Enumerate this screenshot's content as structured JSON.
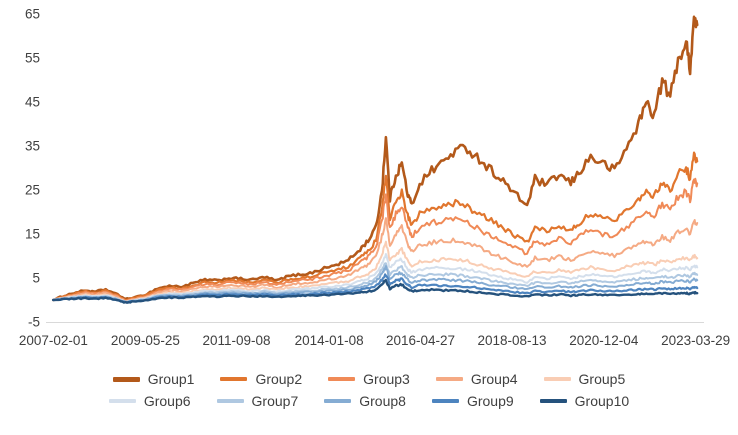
{
  "chart_data": {
    "type": "line",
    "title": "",
    "xlabel": "",
    "ylabel": "",
    "grid": false,
    "axis_color": "#D9D9D9",
    "text_color": "#404040",
    "ylim": [
      -5,
      65
    ],
    "xlim": [
      2007.0,
      2023.35
    ],
    "y_ticks": [
      -5,
      5,
      15,
      25,
      35,
      45,
      55,
      65
    ],
    "x_tick_labels": [
      "2007-02-01",
      "2009-05-25",
      "2011-09-08",
      "2014-01-08",
      "2016-04-27",
      "2018-08-13",
      "2020-12-04",
      "2023-03-29"
    ],
    "x_tick_positions": [
      2007.085,
      2009.4,
      2011.69,
      2014.02,
      2016.32,
      2018.62,
      2020.93,
      2023.24
    ],
    "x": [
      2007.08,
      2007.3,
      2007.6,
      2007.9,
      2008.1,
      2008.4,
      2008.7,
      2008.9,
      2009.1,
      2009.4,
      2009.7,
      2010.0,
      2010.3,
      2010.6,
      2010.9,
      2011.2,
      2011.5,
      2011.8,
      2012.1,
      2012.4,
      2012.7,
      2013.0,
      2013.3,
      2013.6,
      2013.9,
      2014.2,
      2014.5,
      2014.8,
      2015.0,
      2015.2,
      2015.35,
      2015.45,
      2015.55,
      2015.7,
      2015.85,
      2016.0,
      2016.1,
      2016.3,
      2016.6,
      2016.9,
      2017.2,
      2017.5,
      2017.8,
      2018.1,
      2018.4,
      2018.7,
      2019.0,
      2019.2,
      2019.5,
      2019.8,
      2020.1,
      2020.3,
      2020.6,
      2020.9,
      2021.2,
      2021.5,
      2021.8,
      2022.0,
      2022.2,
      2022.4,
      2022.6,
      2022.8,
      2023.0,
      2023.1,
      2023.2,
      2023.28
    ],
    "series": [
      {
        "name": "Group1",
        "color": "#B3591A",
        "width": 2.6,
        "values": [
          0,
          0.8,
          1.6,
          2.2,
          1.8,
          2.4,
          1.2,
          0.2,
          0.5,
          1.2,
          2.6,
          3.2,
          3.0,
          3.8,
          4.6,
          4.4,
          5.0,
          4.8,
          4.6,
          5.2,
          4.4,
          5.4,
          5.8,
          6.2,
          7.2,
          8.0,
          9.0,
          11.5,
          13.5,
          16.5,
          25.0,
          37.0,
          23.0,
          28.5,
          31.0,
          24.0,
          21.5,
          26.5,
          29.5,
          31.5,
          34.0,
          34.5,
          32.0,
          29.5,
          27.0,
          24.0,
          21.5,
          27.5,
          26.0,
          28.5,
          26.5,
          29.0,
          32.5,
          31.0,
          29.5,
          34.5,
          40.0,
          45.0,
          42.0,
          50.0,
          46.0,
          55.0,
          58.0,
          53.0,
          64.0,
          62.5
        ]
      },
      {
        "name": "Group2",
        "color": "#E1762E",
        "width": 2.2,
        "values": [
          0,
          0.7,
          1.4,
          2.0,
          1.6,
          2.1,
          1.0,
          0.0,
          0.4,
          1.0,
          2.2,
          2.8,
          2.6,
          3.3,
          4.0,
          3.9,
          4.4,
          4.2,
          4.0,
          4.6,
          3.9,
          4.7,
          5.0,
          5.4,
          6.2,
          6.8,
          7.6,
          9.5,
          11.0,
          13.5,
          21.0,
          28.0,
          18.5,
          22.5,
          24.5,
          19.0,
          17.0,
          19.5,
          21.0,
          21.5,
          22.0,
          21.0,
          19.5,
          18.0,
          16.5,
          14.5,
          13.0,
          16.5,
          15.5,
          17.0,
          16.0,
          17.5,
          19.5,
          18.5,
          18.0,
          20.5,
          23.0,
          25.0,
          23.5,
          27.0,
          25.0,
          28.5,
          30.0,
          27.5,
          33.0,
          31.5
        ]
      },
      {
        "name": "Group3",
        "color": "#F08A57",
        "width": 2.0,
        "values": [
          0,
          0.6,
          1.2,
          1.8,
          1.4,
          1.9,
          0.8,
          -0.2,
          0.2,
          0.8,
          1.9,
          2.5,
          2.3,
          2.9,
          3.6,
          3.5,
          4.0,
          3.8,
          3.6,
          4.1,
          3.5,
          4.2,
          4.5,
          4.8,
          5.5,
          6.0,
          6.7,
          8.5,
          9.8,
          12.0,
          18.0,
          24.0,
          16.0,
          19.5,
          21.0,
          16.5,
          14.5,
          16.5,
          17.5,
          18.0,
          18.5,
          17.5,
          16.0,
          14.5,
          13.5,
          12.0,
          10.5,
          13.5,
          12.5,
          14.0,
          13.0,
          14.5,
          16.0,
          15.0,
          14.5,
          16.5,
          18.5,
          20.0,
          19.0,
          22.0,
          20.5,
          23.5,
          24.5,
          22.5,
          27.5,
          26.5
        ]
      },
      {
        "name": "Group4",
        "color": "#F5AA84",
        "width": 2.0,
        "values": [
          0,
          0.5,
          1.0,
          1.5,
          1.2,
          1.6,
          0.6,
          -0.3,
          0.1,
          0.6,
          1.6,
          2.1,
          2.0,
          2.5,
          3.1,
          3.0,
          3.4,
          3.2,
          3.0,
          3.5,
          2.9,
          3.5,
          3.8,
          4.0,
          4.6,
          5.0,
          5.6,
          7.0,
          8.0,
          9.8,
          14.5,
          18.5,
          12.5,
          15.0,
          16.5,
          12.5,
          11.0,
          12.5,
          13.0,
          13.5,
          13.5,
          13.0,
          12.0,
          10.5,
          9.5,
          8.5,
          7.5,
          9.5,
          9.0,
          10.0,
          9.0,
          10.0,
          11.0,
          10.5,
          10.0,
          11.5,
          12.5,
          13.5,
          12.5,
          14.5,
          13.5,
          15.5,
          16.0,
          15.0,
          18.0,
          17.5
        ]
      },
      {
        "name": "Group5",
        "color": "#F9CDB4",
        "width": 2.0,
        "values": [
          0,
          0.4,
          0.8,
          1.2,
          0.9,
          1.3,
          0.4,
          -0.4,
          0.0,
          0.4,
          1.3,
          1.7,
          1.6,
          2.0,
          2.5,
          2.4,
          2.8,
          2.6,
          2.4,
          2.8,
          2.3,
          2.8,
          3.0,
          3.2,
          3.6,
          3.9,
          4.3,
          5.3,
          6.0,
          7.3,
          10.5,
          13.0,
          9.0,
          10.5,
          11.5,
          8.8,
          7.8,
          8.8,
          9.0,
          9.2,
          9.2,
          8.8,
          8.0,
          7.2,
          6.5,
          5.8,
          5.2,
          6.5,
          6.2,
          6.8,
          6.2,
          6.8,
          7.4,
          7.0,
          6.8,
          7.5,
          8.0,
          8.5,
          8.0,
          9.0,
          8.5,
          9.3,
          9.5,
          9.0,
          10.0,
          9.5
        ]
      },
      {
        "name": "Group6",
        "color": "#D4DFEC",
        "width": 2.0,
        "values": [
          0,
          0.35,
          0.7,
          1.0,
          0.8,
          1.1,
          0.3,
          -0.4,
          -0.1,
          0.3,
          1.1,
          1.4,
          1.3,
          1.7,
          2.1,
          2.0,
          2.3,
          2.2,
          2.0,
          2.3,
          1.9,
          2.3,
          2.5,
          2.6,
          3.0,
          3.2,
          3.5,
          4.3,
          4.9,
          6.0,
          8.5,
          10.5,
          7.2,
          8.5,
          9.2,
          7.0,
          6.2,
          7.0,
          7.2,
          7.3,
          7.2,
          6.9,
          6.3,
          5.6,
          5.1,
          4.6,
          4.1,
          5.1,
          4.9,
          5.3,
          4.8,
          5.3,
          5.8,
          5.5,
          5.3,
          5.8,
          6.2,
          6.6,
          6.2,
          7.0,
          6.6,
          7.2,
          7.3,
          7.0,
          7.8,
          7.4
        ]
      },
      {
        "name": "Group7",
        "color": "#AFC8E1",
        "width": 2.0,
        "values": [
          0,
          0.3,
          0.6,
          0.85,
          0.65,
          0.9,
          0.2,
          -0.45,
          -0.15,
          0.2,
          0.9,
          1.15,
          1.1,
          1.4,
          1.75,
          1.65,
          1.9,
          1.8,
          1.65,
          1.9,
          1.55,
          1.9,
          2.0,
          2.1,
          2.4,
          2.6,
          2.85,
          3.5,
          4.0,
          4.9,
          7.0,
          8.5,
          5.8,
          6.9,
          7.4,
          5.6,
          5.0,
          5.6,
          5.7,
          5.8,
          5.7,
          5.4,
          4.9,
          4.4,
          4.0,
          3.6,
          3.2,
          4.0,
          3.8,
          4.1,
          3.7,
          4.1,
          4.5,
          4.2,
          4.1,
          4.5,
          4.8,
          5.1,
          4.8,
          5.4,
          5.1,
          5.5,
          5.6,
          5.3,
          6.0,
          5.7
        ]
      },
      {
        "name": "Group8",
        "color": "#85ACD3",
        "width": 2.0,
        "values": [
          0,
          0.25,
          0.5,
          0.7,
          0.55,
          0.75,
          0.1,
          -0.5,
          -0.2,
          0.1,
          0.75,
          1.0,
          0.9,
          1.2,
          1.5,
          1.4,
          1.6,
          1.5,
          1.4,
          1.6,
          1.3,
          1.6,
          1.7,
          1.8,
          2.0,
          2.2,
          2.4,
          3.0,
          3.4,
          4.2,
          6.0,
          7.5,
          4.8,
          5.8,
          6.2,
          4.6,
          4.0,
          4.5,
          4.6,
          4.6,
          4.5,
          4.3,
          3.9,
          3.4,
          3.1,
          2.8,
          2.4,
          3.1,
          2.9,
          3.2,
          2.8,
          3.1,
          3.4,
          3.2,
          3.1,
          3.4,
          3.7,
          3.9,
          3.7,
          4.2,
          3.9,
          4.3,
          4.4,
          4.1,
          4.7,
          4.5
        ]
      },
      {
        "name": "Group9",
        "color": "#4D84BF",
        "width": 2.2,
        "values": [
          0,
          0.2,
          0.4,
          0.55,
          0.4,
          0.6,
          0.0,
          -0.55,
          -0.25,
          0.0,
          0.6,
          0.8,
          0.7,
          0.95,
          1.2,
          1.1,
          1.3,
          1.2,
          1.1,
          1.3,
          1.0,
          1.25,
          1.35,
          1.4,
          1.6,
          1.7,
          1.9,
          2.3,
          2.6,
          3.2,
          4.6,
          5.8,
          3.6,
          4.4,
          4.7,
          3.4,
          2.9,
          3.3,
          3.3,
          3.3,
          3.2,
          3.0,
          2.7,
          2.3,
          2.1,
          1.8,
          1.5,
          2.0,
          1.9,
          2.1,
          1.8,
          2.0,
          2.2,
          2.1,
          2.0,
          2.2,
          2.4,
          2.5,
          2.4,
          2.7,
          2.5,
          2.7,
          2.7,
          2.5,
          2.9,
          2.7
        ]
      },
      {
        "name": "Group10",
        "color": "#25527D",
        "width": 2.4,
        "values": [
          0,
          0.15,
          0.3,
          0.4,
          0.3,
          0.45,
          -0.1,
          -0.6,
          -0.35,
          -0.1,
          0.4,
          0.6,
          0.5,
          0.7,
          0.9,
          0.8,
          0.95,
          0.9,
          0.8,
          0.95,
          0.7,
          0.9,
          1.0,
          1.0,
          1.15,
          1.25,
          1.4,
          1.7,
          1.9,
          2.4,
          3.5,
          4.5,
          2.6,
          3.3,
          3.5,
          2.4,
          2.0,
          2.3,
          2.3,
          2.2,
          2.1,
          2.0,
          1.7,
          1.4,
          1.25,
          1.05,
          0.85,
          1.2,
          1.1,
          1.25,
          1.0,
          1.15,
          1.3,
          1.2,
          1.1,
          1.25,
          1.35,
          1.45,
          1.35,
          1.55,
          1.4,
          1.55,
          1.55,
          1.4,
          1.7,
          1.55
        ]
      }
    ],
    "legend": {
      "position": "bottom",
      "rows": [
        [
          "Group1",
          "Group2",
          "Group3",
          "Group4",
          "Group5"
        ],
        [
          "Group6",
          "Group7",
          "Group8",
          "Group9",
          "Group10"
        ]
      ]
    }
  }
}
